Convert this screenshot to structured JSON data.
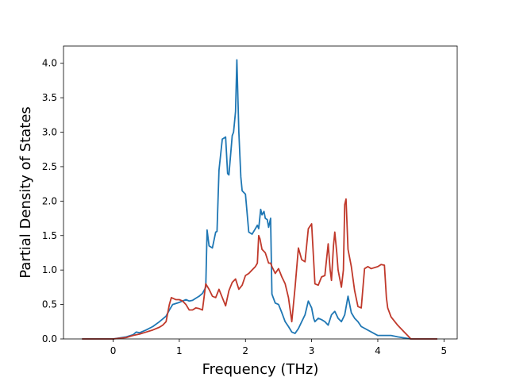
{
  "chart_data": {
    "type": "line",
    "xlabel": "Frequency (THz)",
    "ylabel": "Partial Density of States",
    "xlim": [
      -0.75,
      5.2
    ],
    "ylim": [
      0,
      4.25
    ],
    "x_ticks": [
      "0",
      "1",
      "2",
      "3",
      "4",
      "5"
    ],
    "x_tick_values": [
      0,
      1,
      2,
      3,
      4,
      5
    ],
    "y_ticks": [
      "0.0",
      "0.5",
      "1.0",
      "1.5",
      "2.0",
      "2.5",
      "3.0",
      "3.5",
      "4.0"
    ],
    "y_tick_values": [
      0,
      0.5,
      1.0,
      1.5,
      2.0,
      2.5,
      3.0,
      3.5,
      4.0
    ],
    "grid": false,
    "legend": "none",
    "series": [
      {
        "color": "#1f77b4",
        "x": [
          -0.47,
          0.0,
          0.2,
          0.3,
          0.35,
          0.4,
          0.5,
          0.6,
          0.7,
          0.8,
          0.85,
          0.9,
          1.0,
          1.1,
          1.15,
          1.2,
          1.3,
          1.35,
          1.4,
          1.42,
          1.45,
          1.5,
          1.55,
          1.57,
          1.6,
          1.65,
          1.7,
          1.73,
          1.75,
          1.8,
          1.82,
          1.85,
          1.87,
          1.9,
          1.93,
          1.95,
          2.0,
          2.05,
          2.1,
          2.15,
          2.18,
          2.2,
          2.23,
          2.25,
          2.28,
          2.3,
          2.33,
          2.35,
          2.38,
          2.4,
          2.45,
          2.5,
          2.55,
          2.6,
          2.65,
          2.7,
          2.75,
          2.8,
          2.85,
          2.9,
          2.95,
          3.0,
          3.03,
          3.05,
          3.1,
          3.15,
          3.2,
          3.25,
          3.3,
          3.35,
          3.4,
          3.45,
          3.5,
          3.55,
          3.6,
          3.65,
          3.7,
          3.75,
          4.0,
          4.2,
          4.3,
          4.5,
          4.9
        ],
        "values": [
          0.0,
          0.0,
          0.03,
          0.06,
          0.1,
          0.09,
          0.13,
          0.18,
          0.25,
          0.33,
          0.42,
          0.5,
          0.53,
          0.57,
          0.55,
          0.56,
          0.62,
          0.66,
          0.75,
          1.58,
          1.35,
          1.32,
          1.55,
          1.56,
          2.45,
          2.9,
          2.93,
          2.4,
          2.38,
          2.95,
          3.0,
          3.3,
          4.05,
          3.0,
          2.35,
          2.15,
          2.1,
          1.55,
          1.52,
          1.6,
          1.65,
          1.6,
          1.88,
          1.8,
          1.85,
          1.75,
          1.73,
          1.62,
          1.75,
          0.65,
          0.52,
          0.5,
          0.38,
          0.25,
          0.18,
          0.1,
          0.08,
          0.15,
          0.25,
          0.35,
          0.55,
          0.45,
          0.3,
          0.25,
          0.3,
          0.28,
          0.25,
          0.2,
          0.35,
          0.4,
          0.3,
          0.25,
          0.35,
          0.62,
          0.38,
          0.3,
          0.25,
          0.18,
          0.05,
          0.05,
          0.03,
          0.0,
          0.0
        ]
      },
      {
        "color": "#c0392b",
        "x": [
          -0.47,
          0.0,
          0.2,
          0.3,
          0.4,
          0.5,
          0.6,
          0.7,
          0.75,
          0.8,
          0.85,
          0.88,
          0.95,
          1.0,
          1.05,
          1.1,
          1.15,
          1.2,
          1.25,
          1.3,
          1.35,
          1.4,
          1.45,
          1.5,
          1.55,
          1.6,
          1.65,
          1.7,
          1.75,
          1.8,
          1.85,
          1.9,
          1.95,
          2.0,
          2.05,
          2.1,
          2.15,
          2.18,
          2.2,
          2.22,
          2.25,
          2.3,
          2.35,
          2.38,
          2.4,
          2.45,
          2.5,
          2.55,
          2.6,
          2.65,
          2.7,
          2.75,
          2.8,
          2.85,
          2.9,
          2.95,
          3.0,
          3.05,
          3.1,
          3.15,
          3.2,
          3.25,
          3.28,
          3.3,
          3.33,
          3.35,
          3.38,
          3.4,
          3.45,
          3.48,
          3.5,
          3.52,
          3.55,
          3.6,
          3.65,
          3.7,
          3.75,
          3.8,
          3.85,
          3.9,
          4.0,
          4.05,
          4.1,
          4.13,
          4.15,
          4.2,
          4.3,
          4.4,
          4.45,
          4.5,
          4.9
        ],
        "values": [
          0.0,
          0.0,
          0.02,
          0.05,
          0.07,
          0.1,
          0.13,
          0.17,
          0.2,
          0.25,
          0.5,
          0.6,
          0.57,
          0.57,
          0.55,
          0.5,
          0.42,
          0.42,
          0.45,
          0.44,
          0.42,
          0.8,
          0.72,
          0.62,
          0.6,
          0.72,
          0.6,
          0.48,
          0.7,
          0.82,
          0.87,
          0.72,
          0.78,
          0.92,
          0.95,
          1.0,
          1.05,
          1.1,
          1.5,
          1.45,
          1.3,
          1.25,
          1.1,
          1.1,
          1.05,
          0.95,
          1.02,
          0.9,
          0.8,
          0.6,
          0.25,
          0.75,
          1.32,
          1.15,
          1.12,
          1.6,
          1.67,
          0.8,
          0.78,
          0.9,
          0.92,
          1.38,
          1.0,
          0.85,
          1.35,
          1.55,
          1.25,
          1.0,
          0.75,
          1.0,
          1.95,
          2.03,
          1.3,
          1.05,
          0.7,
          0.47,
          0.45,
          1.02,
          1.05,
          1.02,
          1.05,
          1.08,
          1.07,
          0.6,
          0.45,
          0.32,
          0.2,
          0.1,
          0.05,
          0.0,
          0.0
        ]
      }
    ]
  }
}
